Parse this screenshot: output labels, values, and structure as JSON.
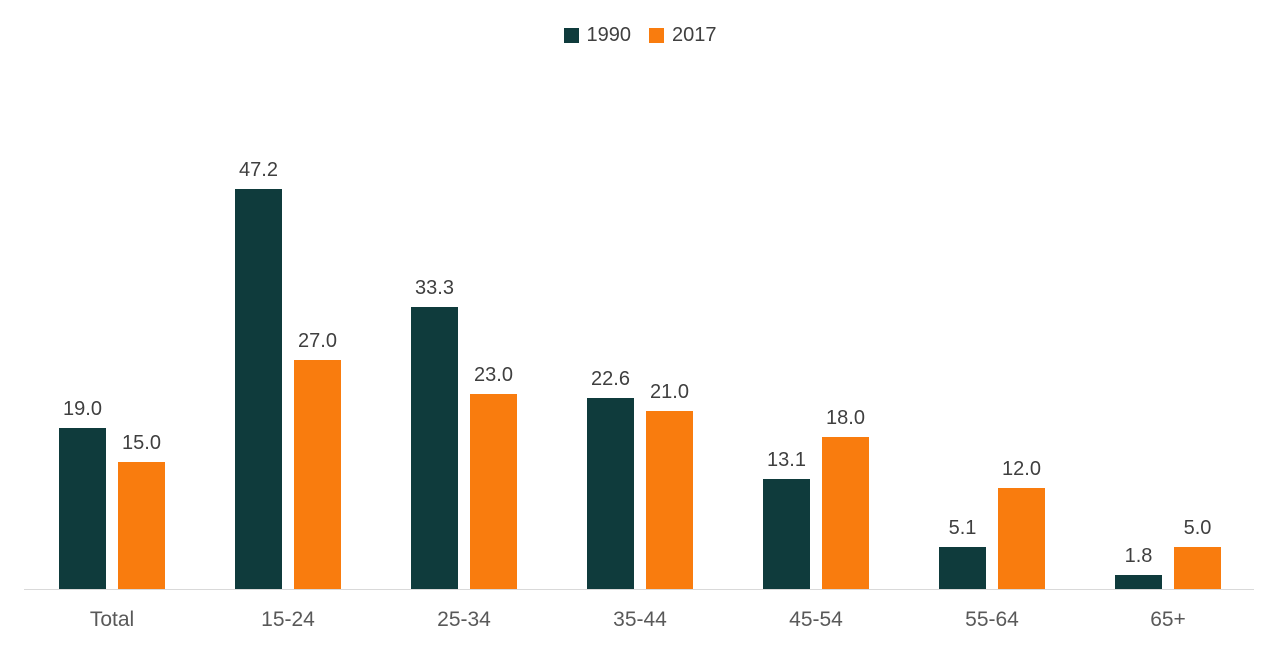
{
  "chart_data": {
    "type": "bar",
    "title": "",
    "categories": [
      "Total",
      "15-24",
      "25-34",
      "35-44",
      "45-54",
      "55-64",
      "65+"
    ],
    "series": [
      {
        "name": "1990",
        "color": "#0f3b3c",
        "values": [
          19.0,
          47.2,
          33.3,
          22.6,
          13.1,
          5.1,
          1.8
        ],
        "labels": [
          "19.0",
          "47.2",
          "33.3",
          "22.6",
          "13.1",
          "5.1",
          "1.8"
        ]
      },
      {
        "name": "2017",
        "color": "#f97c0e",
        "values": [
          15.0,
          27.0,
          23.0,
          21.0,
          18.0,
          12.0,
          5.0
        ],
        "labels": [
          "15.0",
          "27.0",
          "23.0",
          "21.0",
          "18.0",
          "12.0",
          "5.0"
        ]
      }
    ],
    "legend_position": "top-center",
    "ylim": [
      0,
      50
    ],
    "grid": false,
    "y_axis_visible": false,
    "axis_line_color": "#d9d9d9",
    "value_label_color": "#3f3f3f",
    "category_label_color": "#595959"
  }
}
